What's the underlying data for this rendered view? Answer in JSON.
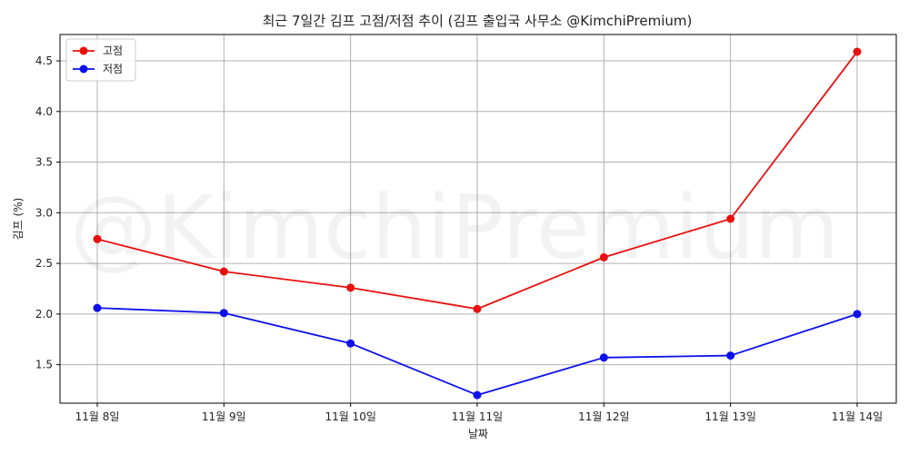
{
  "chart_data": {
    "type": "line",
    "title": "최근 7일간 김프 고점/저점 추이 (김프 출입국 사무소 @KimchiPremium)",
    "xlabel": "날짜",
    "ylabel": "김프 (%)",
    "watermark": "@KimchiPremium",
    "categories": [
      "11월 8일",
      "11월 9일",
      "11월 10일",
      "11월 11일",
      "11월 12일",
      "11월 13일",
      "11월 14일"
    ],
    "ylim": [
      1.12,
      4.76
    ],
    "yticks": [
      1.5,
      2.0,
      2.5,
      3.0,
      3.5,
      4.0,
      4.5
    ],
    "ytick_labels": [
      "1.5",
      "2.0",
      "2.5",
      "3.0",
      "3.5",
      "4.0",
      "4.5"
    ],
    "grid": true,
    "legend_position": "top-left",
    "series": [
      {
        "name": "고점",
        "color": "#e8100f",
        "values": [
          2.74,
          2.42,
          2.26,
          2.05,
          2.56,
          2.94,
          4.59
        ]
      },
      {
        "name": "저점",
        "color": "#0d10e8",
        "values": [
          2.06,
          2.01,
          1.71,
          1.2,
          1.57,
          1.59,
          2.0
        ]
      }
    ]
  }
}
